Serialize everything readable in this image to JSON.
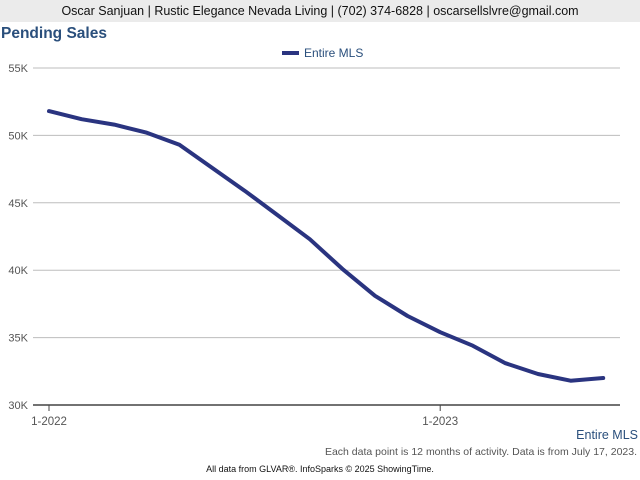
{
  "header": {
    "text": "Oscar Sanjuan | Rustic Elegance Nevada Living | (702) 374-6828 | oscarsellslvre@gmail.com"
  },
  "chart_data": {
    "type": "line",
    "title": "Pending Sales",
    "xlabel": "",
    "ylabel": "",
    "x_tick_labels": [
      "1-2022",
      "1-2023"
    ],
    "y_tick_labels": [
      "30K",
      "35K",
      "40K",
      "45K",
      "50K",
      "55K"
    ],
    "ylim": [
      30000,
      55000
    ],
    "grid": true,
    "legend_position": "top-center",
    "series": [
      {
        "name": "Entire MLS",
        "color": "#2a3480",
        "x": [
          "2022-01",
          "2022-02",
          "2022-03",
          "2022-04",
          "2022-05",
          "2022-06",
          "2022-07",
          "2022-08",
          "2022-09",
          "2022-10",
          "2022-11",
          "2022-12",
          "2023-01",
          "2023-02",
          "2023-03",
          "2023-04",
          "2023-05",
          "2023-06"
        ],
        "values": [
          51800,
          51200,
          50800,
          50200,
          49300,
          47600,
          45900,
          44100,
          42300,
          40100,
          38100,
          36600,
          35400,
          34400,
          33100,
          32300,
          31800,
          32000
        ]
      }
    ]
  },
  "series_caption": "Entire MLS",
  "footnote": "Each data point is 12 months of activity. Data is from July 17, 2023.",
  "credits": "All data from GLVAR®. InfoSparks © 2025 ShowingTime."
}
